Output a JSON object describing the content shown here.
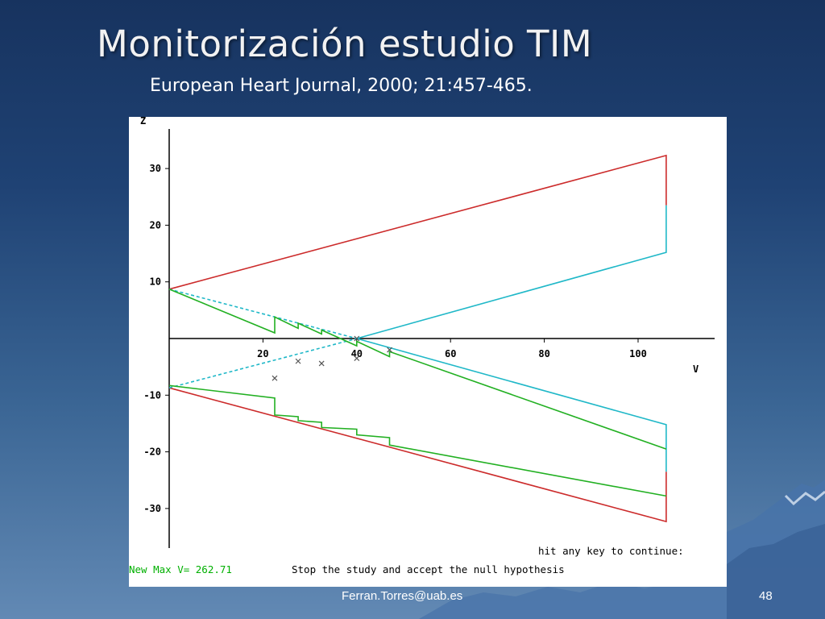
{
  "slide": {
    "title": "Monitorización estudio TIM",
    "subtitle": "European Heart Journal, 2000; 21:457-465.",
    "footer_email": "Ferran.Torres@uab.es",
    "page_number": "48"
  },
  "terminal": {
    "prompt": "hit any key to continue:",
    "status_value": "New Max V= 262.71",
    "decision": "Stop the study and accept the null hypothesis",
    "status_color": "#00b000"
  },
  "chart_data": {
    "type": "line",
    "xlabel": "V",
    "ylabel": "Z",
    "xlim": [
      0,
      116
    ],
    "ylim": [
      -37,
      37
    ],
    "x_ticks": [
      20,
      40,
      60,
      80,
      100
    ],
    "y_ticks": [
      30,
      20,
      10,
      -10,
      -20,
      -30
    ],
    "colors": {
      "outer_boundary": "#cc2b2b",
      "inner_boundary": "#20b8c8",
      "path": "#22b022",
      "points": "#555555"
    },
    "series": [
      {
        "role": "outer-upper",
        "color": "#cc2b2b",
        "points": [
          [
            0,
            8.7
          ],
          [
            106,
            32.3
          ],
          [
            106,
            23.5
          ]
        ]
      },
      {
        "role": "outer-lower",
        "color": "#cc2b2b",
        "points": [
          [
            0,
            -8.7
          ],
          [
            106,
            -32.3
          ],
          [
            106,
            -23.5
          ]
        ]
      },
      {
        "role": "inner-upper",
        "color": "#20b8c8",
        "points": [
          [
            40,
            0
          ],
          [
            106,
            15.2
          ],
          [
            106,
            23.5
          ]
        ]
      },
      {
        "role": "inner-lower",
        "color": "#20b8c8",
        "points": [
          [
            40,
            0
          ],
          [
            106,
            -15.2
          ],
          [
            106,
            -23.5
          ]
        ]
      },
      {
        "role": "inner-upper-dashed",
        "color": "#20b8c8",
        "dashed": true,
        "points": [
          [
            0,
            8.7
          ],
          [
            40,
            0
          ]
        ]
      },
      {
        "role": "inner-lower-dashed",
        "color": "#20b8c8",
        "dashed": true,
        "points": [
          [
            0,
            -8.7
          ],
          [
            40,
            0
          ]
        ]
      },
      {
        "role": "path-upper",
        "color": "#22b022",
        "points": [
          [
            0,
            8.7
          ],
          [
            22.5,
            1
          ],
          [
            22.5,
            3.8
          ],
          [
            27.5,
            1.8
          ],
          [
            27.5,
            2.7
          ],
          [
            32.5,
            0.8
          ],
          [
            32.5,
            1.5
          ],
          [
            40,
            -1.3
          ],
          [
            40,
            -0.5
          ],
          [
            47,
            -3.2
          ],
          [
            47,
            -2.3
          ],
          [
            106,
            -19.5
          ]
        ]
      },
      {
        "role": "path-lower",
        "color": "#22b022",
        "points": [
          [
            0,
            -8.3
          ],
          [
            22.5,
            -10.5
          ],
          [
            22.5,
            -13.5
          ],
          [
            27.5,
            -13.8
          ],
          [
            27.5,
            -14.5
          ],
          [
            32.5,
            -14.8
          ],
          [
            32.5,
            -15.7
          ],
          [
            40,
            -16
          ],
          [
            40,
            -17
          ],
          [
            47,
            -17.5
          ],
          [
            47,
            -18.8
          ],
          [
            106,
            -27.8
          ]
        ]
      }
    ],
    "markers": [
      [
        22.5,
        -7
      ],
      [
        27.5,
        -4
      ],
      [
        32.5,
        -4.4
      ],
      [
        40,
        -3.5
      ],
      [
        40,
        0
      ],
      [
        47,
        -2
      ]
    ]
  }
}
